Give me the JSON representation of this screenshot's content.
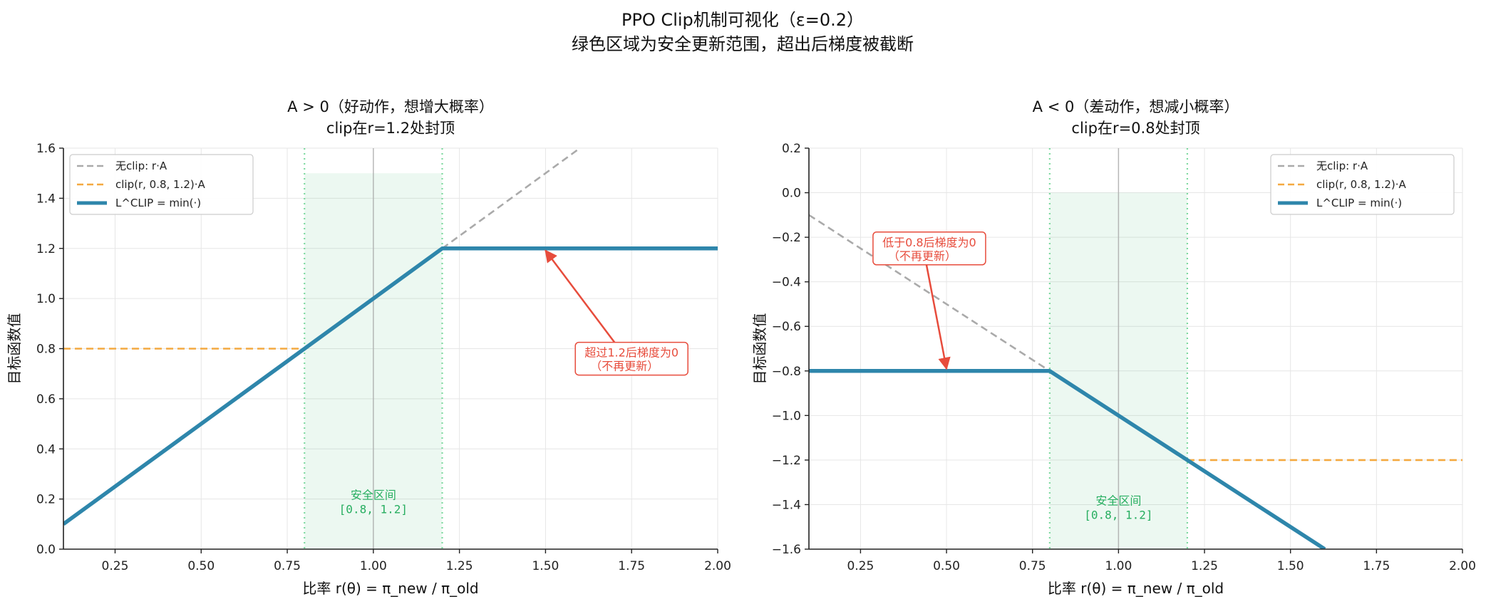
{
  "figure": {
    "title_line1": "PPO Clip机制可视化（ε=0.2）",
    "title_line2": "绿色区域为安全更新范围，超出后梯度被截断"
  },
  "colors": {
    "clipped_objective": "#2E86AB",
    "unclipped": "#AAAAAA",
    "clip_term": "#F4A940",
    "safe_zone": "#27AE60",
    "annotation": "#E74C3C"
  },
  "chart_data": [
    {
      "type": "line",
      "title_line1": "A > 0（好动作，想增大概率）",
      "title_line2": "clip在r=1.2处封顶",
      "xlabel": "比率 r(θ) = π_new / π_old",
      "ylabel": "目标函数值",
      "xlim": [
        0.1,
        2.0
      ],
      "ylim": [
        0.0,
        1.6
      ],
      "xticks": [
        0.25,
        0.5,
        0.75,
        1.0,
        1.25,
        1.5,
        1.75,
        2.0
      ],
      "xtick_labels": [
        "0.25",
        "0.50",
        "0.75",
        "1.00",
        "1.25",
        "1.50",
        "1.75",
        "2.00"
      ],
      "yticks": [
        0.0,
        0.2,
        0.4,
        0.6,
        0.8,
        1.0,
        1.2,
        1.4,
        1.6
      ],
      "ytick_labels": [
        "0.0",
        "0.2",
        "0.4",
        "0.6",
        "0.8",
        "1.0",
        "1.2",
        "1.4",
        "1.6"
      ],
      "grid": true,
      "legend_position": "upper-left",
      "safe_zone": {
        "x": [
          0.8,
          1.2
        ],
        "y": [
          0.0,
          1.5
        ],
        "label_line1": "安全区间",
        "label_line2": "[0.8, 1.2]",
        "label_pos": [
          1.0,
          0.2
        ]
      },
      "vline": 1.0,
      "series": [
        {
          "name": "无clip: r·A",
          "style": "dashed",
          "color": "#AAAAAA",
          "points": [
            [
              1.2,
              1.2
            ],
            [
              1.6,
              1.6
            ]
          ]
        },
        {
          "name": "clip(r, 0.8, 1.2)·A",
          "style": "dashed",
          "color": "#F4A940",
          "points": [
            [
              0.1,
              0.8
            ],
            [
              0.8,
              0.8
            ]
          ]
        },
        {
          "name": "L^CLIP = min(·)",
          "style": "solid",
          "color": "#2E86AB",
          "points": [
            [
              0.1,
              0.1
            ],
            [
              1.2,
              1.2
            ],
            [
              2.0,
              1.2
            ]
          ]
        }
      ],
      "annotation": {
        "line1": "超过1.2后梯度为0",
        "line2": "（不再更新）",
        "text_pos": [
          1.75,
          0.76
        ],
        "arrow_to": [
          1.5,
          1.2
        ]
      }
    },
    {
      "type": "line",
      "title_line1": "A < 0（差动作，想减小概率）",
      "title_line2": "clip在r=0.8处封顶",
      "xlabel": "比率 r(θ) = π_new / π_old",
      "ylabel": "目标函数值",
      "xlim": [
        0.1,
        2.0
      ],
      "ylim": [
        -1.6,
        0.2
      ],
      "xticks": [
        0.25,
        0.5,
        0.75,
        1.0,
        1.25,
        1.5,
        1.75,
        2.0
      ],
      "xtick_labels": [
        "0.25",
        "0.50",
        "0.75",
        "1.00",
        "1.25",
        "1.50",
        "1.75",
        "2.00"
      ],
      "yticks": [
        -1.6,
        -1.4,
        -1.2,
        -1.0,
        -0.8,
        -0.6,
        -0.4,
        -0.2,
        0.0,
        0.2
      ],
      "ytick_labels": [
        "−1.6",
        "−1.4",
        "−1.2",
        "−1.0",
        "−0.8",
        "−0.6",
        "−0.4",
        "−0.2",
        "0.0",
        "0.2"
      ],
      "grid": true,
      "legend_position": "upper-right",
      "safe_zone": {
        "x": [
          0.8,
          1.2
        ],
        "y": [
          -1.6,
          0.0
        ],
        "label_line1": "安全区间",
        "label_line2": "[0.8, 1.2]",
        "label_pos": [
          1.0,
          -1.4
        ]
      },
      "vline": 1.0,
      "series": [
        {
          "name": "无clip: r·A",
          "style": "dashed",
          "color": "#AAAAAA",
          "points": [
            [
              0.1,
              -0.1
            ],
            [
              0.8,
              -0.8
            ]
          ]
        },
        {
          "name": "clip(r, 0.8, 1.2)·A",
          "style": "dashed",
          "color": "#F4A940",
          "points": [
            [
              1.2,
              -1.2
            ],
            [
              2.0,
              -1.2
            ]
          ]
        },
        {
          "name": "L^CLIP = min(·)",
          "style": "solid",
          "color": "#2E86AB",
          "points": [
            [
              0.1,
              -0.8
            ],
            [
              0.8,
              -0.8
            ],
            [
              1.6,
              -1.6
            ]
          ]
        }
      ],
      "annotation": {
        "line1": "低于0.8后梯度为0",
        "line2": "（不再更新）",
        "text_pos": [
          0.45,
          -0.25
        ],
        "arrow_to": [
          0.5,
          -0.8
        ]
      }
    }
  ]
}
